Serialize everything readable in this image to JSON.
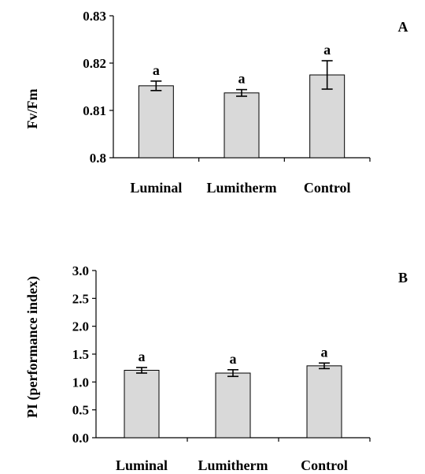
{
  "colors": {
    "bar_fill": "#d9d9d9",
    "axis": "#000000"
  },
  "chart_data": [
    {
      "type": "bar",
      "panel_label": "A",
      "categories": [
        "Luminal",
        "Lumitherm",
        "Control"
      ],
      "values": [
        0.8152,
        0.8137,
        0.8175
      ],
      "errors": [
        0.001,
        0.0007,
        0.003
      ],
      "significance": [
        "a",
        "a",
        "a"
      ],
      "ylabel": "Fv/Fm",
      "xlabel": "",
      "ylim": [
        0.8,
        0.83
      ],
      "yticks": [
        "0.8",
        "0.81",
        "0.82",
        "0.83"
      ],
      "grid": false
    },
    {
      "type": "bar",
      "panel_label": "B",
      "categories": [
        "Luminal",
        "Lumitherm",
        "Control"
      ],
      "values": [
        1.21,
        1.16,
        1.29
      ],
      "errors": [
        0.05,
        0.06,
        0.05
      ],
      "significance": [
        "a",
        "a",
        "a"
      ],
      "ylabel": "PI (performance index)",
      "xlabel": "",
      "ylim": [
        0.0,
        3.0
      ],
      "yticks": [
        "0.0",
        "0.5",
        "1.0",
        "1.5",
        "2.0",
        "2.5",
        "3.0"
      ],
      "grid": false
    }
  ]
}
